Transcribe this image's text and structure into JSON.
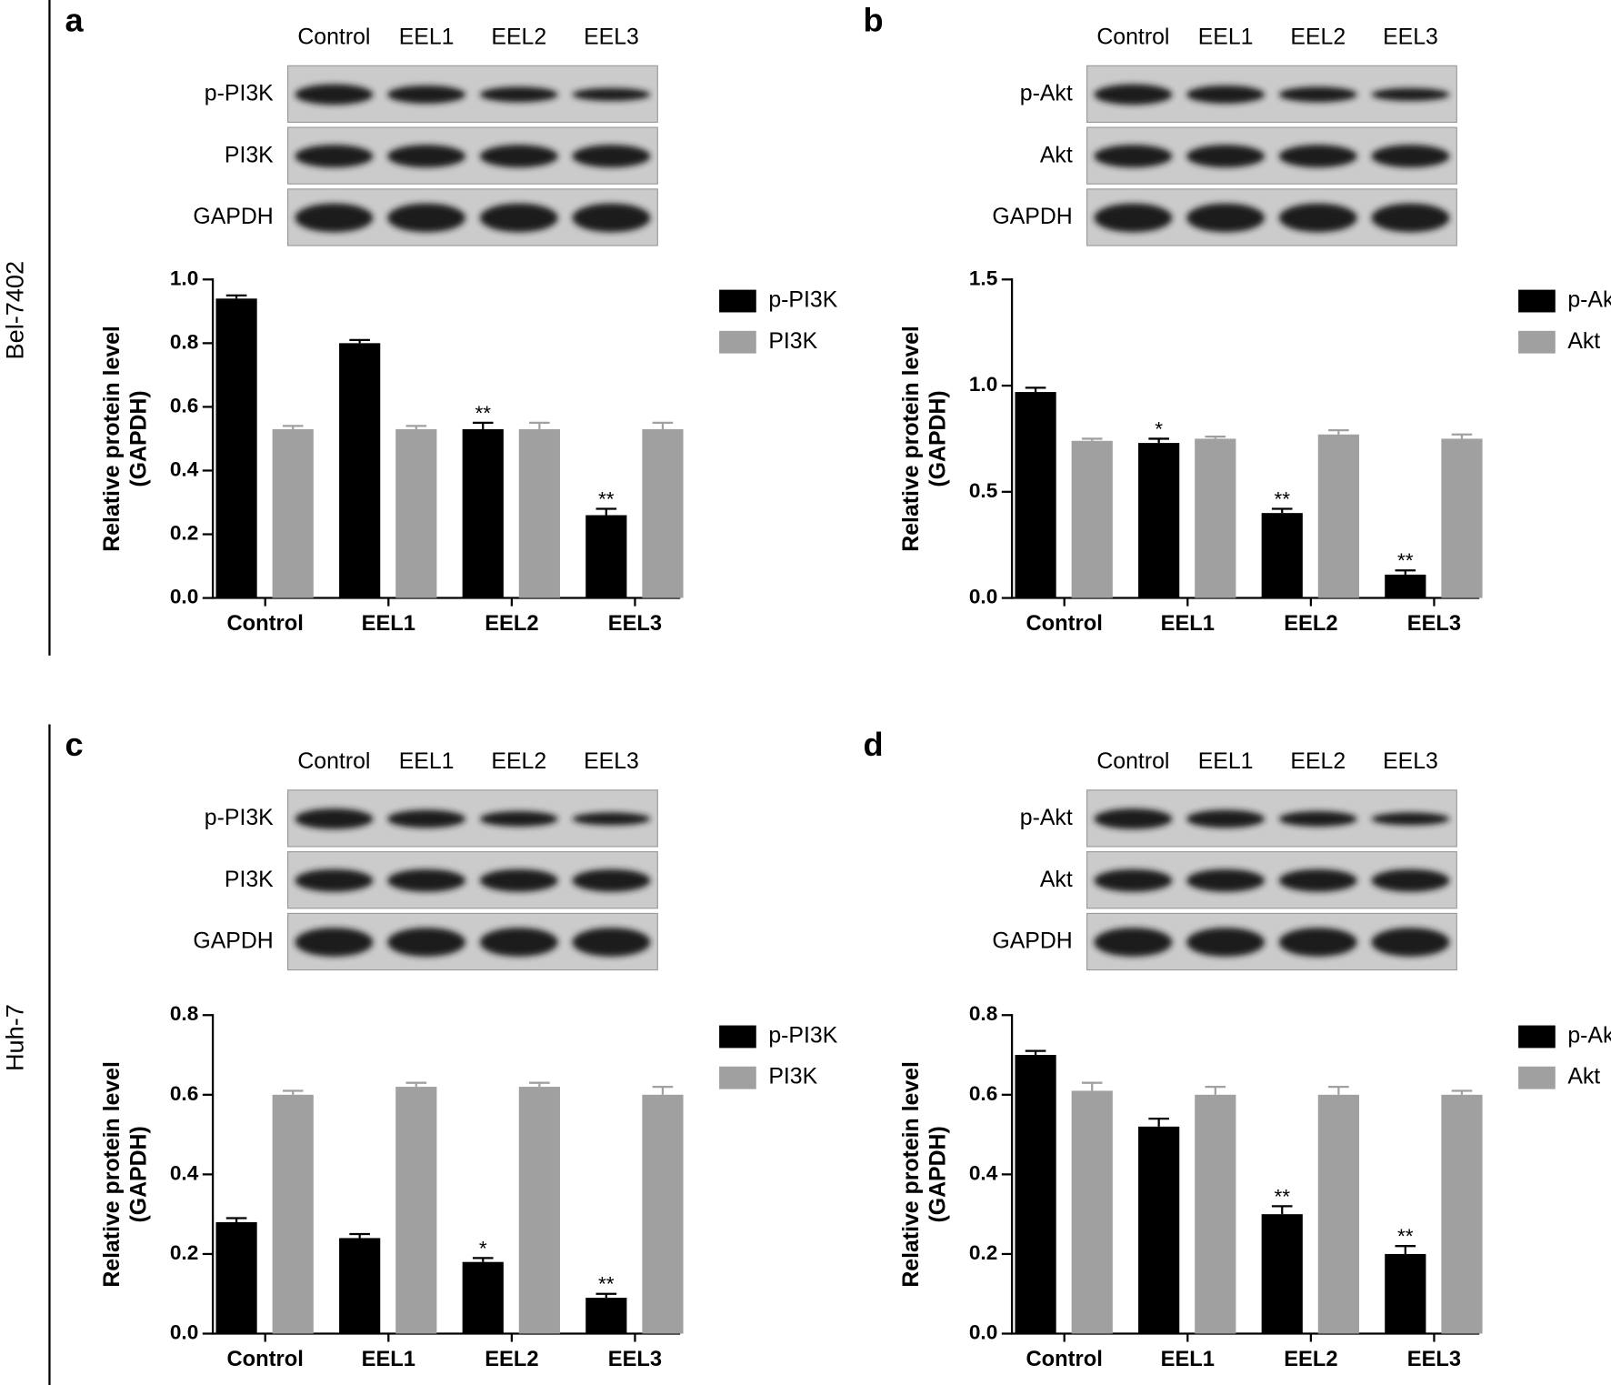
{
  "row_labels": [
    "Bel-7402",
    "Huh-7"
  ],
  "chart_data": [
    {
      "type": "bar",
      "panel": "a",
      "blot": {
        "lanes": [
          "Control",
          "EEL1",
          "EEL2",
          "EEL3"
        ],
        "rows": [
          "p-PI3K",
          "PI3K",
          "GAPDH"
        ]
      },
      "ylabel": [
        "Relative protein level",
        "(GAPDH)"
      ],
      "categories": [
        "Control",
        "EEL1",
        "EEL2",
        "EEL3"
      ],
      "ylim": [
        0,
        1.0
      ],
      "yticks": [
        {
          "value": 0,
          "label": "0.0"
        },
        0.2,
        0.4,
        0.6,
        0.8,
        {
          "value": 1.0,
          "label": "1.0"
        }
      ],
      "series": [
        {
          "name": "p-PI3K",
          "color": "#000000",
          "values": [
            0.94,
            0.8,
            0.53,
            0.26
          ],
          "errors": [
            0.01,
            0.01,
            0.02,
            0.02
          ],
          "annotations": [
            null,
            null,
            "**",
            "**"
          ]
        },
        {
          "name": "PI3K",
          "color": "#a0a0a0",
          "values": [
            0.53,
            0.53,
            0.53,
            0.53
          ],
          "errors": [
            0.01,
            0.01,
            0.02,
            0.02
          ]
        }
      ]
    },
    {
      "type": "bar",
      "panel": "b",
      "blot": {
        "lanes": [
          "Control",
          "EEL1",
          "EEL2",
          "EEL3"
        ],
        "rows": [
          "p-Akt",
          "Akt",
          "GAPDH"
        ]
      },
      "ylabel": [
        "Relative protein level",
        "(GAPDH)"
      ],
      "categories": [
        "Control",
        "EEL1",
        "EEL2",
        "EEL3"
      ],
      "ylim": [
        0,
        1.5
      ],
      "yticks": [
        {
          "value": 0,
          "label": "0.0"
        },
        0.5,
        {
          "value": 1.0,
          "label": "1.0"
        },
        1.5
      ],
      "series": [
        {
          "name": "p-Akt",
          "color": "#000000",
          "values": [
            0.97,
            0.73,
            0.4,
            0.11
          ],
          "errors": [
            0.02,
            0.02,
            0.02,
            0.02
          ],
          "annotations": [
            null,
            "*",
            "**",
            "**"
          ]
        },
        {
          "name": "Akt",
          "color": "#a0a0a0",
          "values": [
            0.74,
            0.75,
            0.77,
            0.75
          ],
          "errors": [
            0.01,
            0.01,
            0.02,
            0.02
          ]
        }
      ]
    },
    {
      "type": "bar",
      "panel": "c",
      "blot": {
        "lanes": [
          "Control",
          "EEL1",
          "EEL2",
          "EEL3"
        ],
        "rows": [
          "p-PI3K",
          "PI3K",
          "GAPDH"
        ]
      },
      "ylabel": [
        "Relative protein level",
        "(GAPDH)"
      ],
      "categories": [
        "Control",
        "EEL1",
        "EEL2",
        "EEL3"
      ],
      "ylim": [
        0,
        0.8
      ],
      "yticks": [
        {
          "value": 0,
          "label": "0.0"
        },
        0.2,
        0.4,
        0.6,
        0.8
      ],
      "series": [
        {
          "name": "p-PI3K",
          "color": "#000000",
          "values": [
            0.28,
            0.24,
            0.18,
            0.09
          ],
          "errors": [
            0.01,
            0.01,
            0.01,
            0.01
          ],
          "annotations": [
            null,
            null,
            "*",
            "**"
          ]
        },
        {
          "name": "PI3K",
          "color": "#a0a0a0",
          "values": [
            0.6,
            0.62,
            0.62,
            0.6
          ],
          "errors": [
            0.01,
            0.01,
            0.01,
            0.02
          ]
        }
      ]
    },
    {
      "type": "bar",
      "panel": "d",
      "blot": {
        "lanes": [
          "Control",
          "EEL1",
          "EEL2",
          "EEL3"
        ],
        "rows": [
          "p-Akt",
          "Akt",
          "GAPDH"
        ]
      },
      "ylabel": [
        "Relative protein level",
        "(GAPDH)"
      ],
      "categories": [
        "Control",
        "EEL1",
        "EEL2",
        "EEL3"
      ],
      "ylim": [
        0,
        0.8
      ],
      "yticks": [
        {
          "value": 0,
          "label": "0.0"
        },
        0.2,
        0.4,
        0.6,
        0.8
      ],
      "series": [
        {
          "name": "p-Akt",
          "color": "#000000",
          "values": [
            0.7,
            0.52,
            0.3,
            0.2
          ],
          "errors": [
            0.01,
            0.02,
            0.02,
            0.02
          ],
          "annotations": [
            null,
            null,
            "**",
            "**"
          ]
        },
        {
          "name": "Akt",
          "color": "#a0a0a0",
          "values": [
            0.61,
            0.6,
            0.6,
            0.6
          ],
          "errors": [
            0.02,
            0.02,
            0.02,
            0.01
          ]
        }
      ]
    }
  ]
}
